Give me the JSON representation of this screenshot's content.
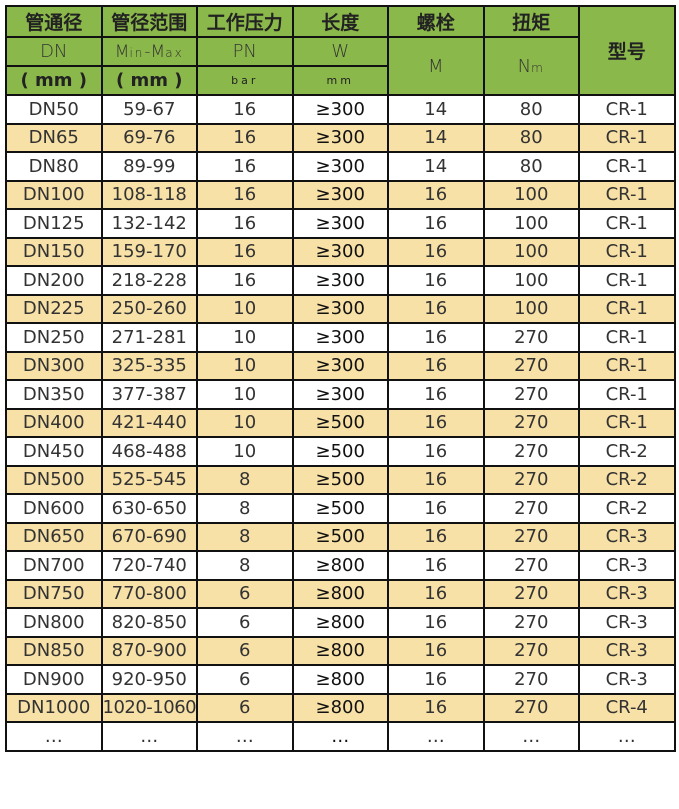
{
  "header": {
    "row1": [
      "管通径",
      "管径范围",
      "工作压力",
      "长度",
      "螺栓",
      "扭矩"
    ],
    "model": "型号",
    "row2": [
      "DN",
      "Min-Max",
      "PN",
      "W",
      "M",
      "Nm"
    ],
    "row3": [
      "( mm )",
      "( mm )",
      "bar",
      "mm"
    ]
  },
  "rows": [
    [
      "DN50",
      "59-67",
      "16",
      "≥300",
      "14",
      "80",
      "CR-1"
    ],
    [
      "DN65",
      "69-76",
      "16",
      "≥300",
      "14",
      "80",
      "CR-1"
    ],
    [
      "DN80",
      "89-99",
      "16",
      "≥300",
      "14",
      "80",
      "CR-1"
    ],
    [
      "DN100",
      "108-118",
      "16",
      "≥300",
      "16",
      "100",
      "CR-1"
    ],
    [
      "DN125",
      "132-142",
      "16",
      "≥300",
      "16",
      "100",
      "CR-1"
    ],
    [
      "DN150",
      "159-170",
      "16",
      "≥300",
      "16",
      "100",
      "CR-1"
    ],
    [
      "DN200",
      "218-228",
      "16",
      "≥300",
      "16",
      "100",
      "CR-1"
    ],
    [
      "DN225",
      "250-260",
      "10",
      "≥300",
      "16",
      "100",
      "CR-1"
    ],
    [
      "DN250",
      "271-281",
      "10",
      "≥300",
      "16",
      "270",
      "CR-1"
    ],
    [
      "DN300",
      "325-335",
      "10",
      "≥300",
      "16",
      "270",
      "CR-1"
    ],
    [
      "DN350",
      "377-387",
      "10",
      "≥300",
      "16",
      "270",
      "CR-1"
    ],
    [
      "DN400",
      "421-440",
      "10",
      "≥500",
      "16",
      "270",
      "CR-1"
    ],
    [
      "DN450",
      "468-488",
      "10",
      "≥500",
      "16",
      "270",
      "CR-2"
    ],
    [
      "DN500",
      "525-545",
      "8",
      "≥500",
      "16",
      "270",
      "CR-2"
    ],
    [
      "DN600",
      "630-650",
      "8",
      "≥500",
      "16",
      "270",
      "CR-2"
    ],
    [
      "DN650",
      "670-690",
      "8",
      "≥500",
      "16",
      "270",
      "CR-3"
    ],
    [
      "DN700",
      "720-740",
      "8",
      "≥800",
      "16",
      "270",
      "CR-3"
    ],
    [
      "DN750",
      "770-800",
      "6",
      "≥800",
      "16",
      "270",
      "CR-3"
    ],
    [
      "DN800",
      "820-850",
      "6",
      "≥800",
      "16",
      "270",
      "CR-3"
    ],
    [
      "DN850",
      "870-900",
      "6",
      "≥800",
      "16",
      "270",
      "CR-3"
    ],
    [
      "DN900",
      "920-950",
      "6",
      "≥800",
      "16",
      "270",
      "CR-3"
    ],
    [
      "DN1000",
      "1020-1060",
      "6",
      "≥800",
      "16",
      "270",
      "CR-4"
    ],
    [
      "…",
      "…",
      "…",
      "…",
      "…",
      "…",
      "…"
    ]
  ],
  "colors": {
    "header_green": "#8bb84b",
    "stripe_yellow": "#f8e1a6"
  }
}
